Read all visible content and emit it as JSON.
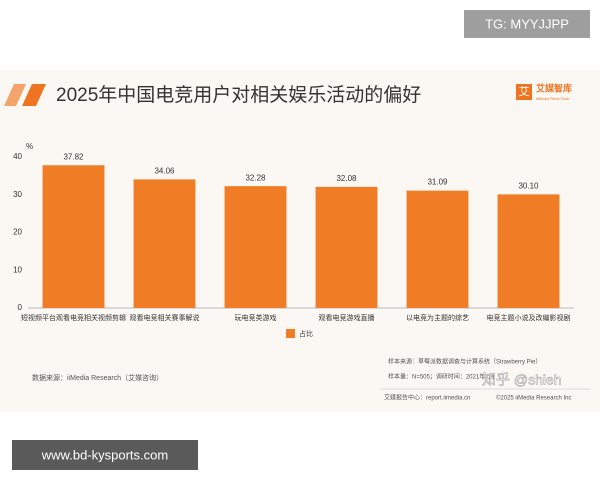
{
  "overlay": {
    "tag": "TG: MYYJJPP",
    "watermark": "知乎 @shieh",
    "site": "www.bd-kysports.com"
  },
  "logo": {
    "icon": "艾",
    "name": "艾媒智库",
    "tagline": "iiMedia Think Tank"
  },
  "chart_data": {
    "type": "bar",
    "title": "2025年中国电竞用户对相关娱乐活动的偏好",
    "y_label": "%",
    "categories": [
      "短视频平台观看电竞相关视频剪辑",
      "观看电竞相关赛事解说",
      "玩电竞类游戏",
      "观看电竞游戏直播",
      "以电竞为主题的综艺",
      "电竞主题小说及改编影视剧"
    ],
    "series": [
      {
        "name": "占比",
        "color": "#f07c26",
        "values": [
          37.82,
          34.06,
          32.28,
          32.08,
          31.09,
          30.1
        ],
        "value_labels": [
          "37.82",
          "34.06",
          "32.28",
          "32.08",
          "31.09",
          "30.10"
        ]
      }
    ],
    "ylim": [
      0,
      40
    ],
    "yticks": [
      0,
      10,
      20,
      30,
      40
    ],
    "grid": false,
    "source": "数据来源：iiMedia Research（艾媒咨询）",
    "notes": [
      "样本来源：草莓派数据调查与计算系统（Strawberry Pie）",
      "样本量：N=505；调研时间：2021年1月"
    ],
    "footer": [
      "艾媒报告中心：report.iimedia.cn",
      "©2025 iiMedia Research Inc"
    ]
  }
}
